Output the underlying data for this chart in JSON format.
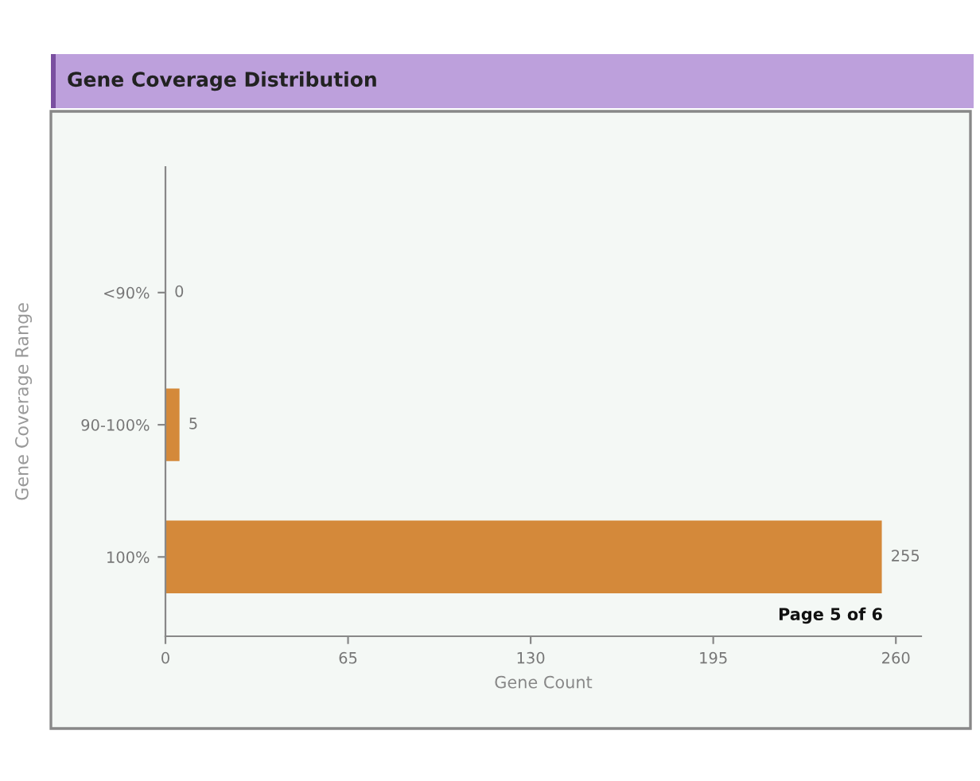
{
  "chart_data": {
    "type": "bar",
    "orientation": "horizontal",
    "title": "Gene Coverage Distribution",
    "categories": [
      "<90%",
      "90-100%",
      "100%"
    ],
    "values": [
      0,
      5,
      255
    ],
    "color": "#d4893a",
    "xlabel": "Gene Count",
    "ylabel": "Gene Coverage Range",
    "xlim": [
      0,
      269
    ],
    "xticks": [
      0,
      65,
      130,
      195,
      260
    ],
    "grid": false,
    "data_labels": true,
    "annotations": [
      "Page 5 of 6"
    ]
  }
}
